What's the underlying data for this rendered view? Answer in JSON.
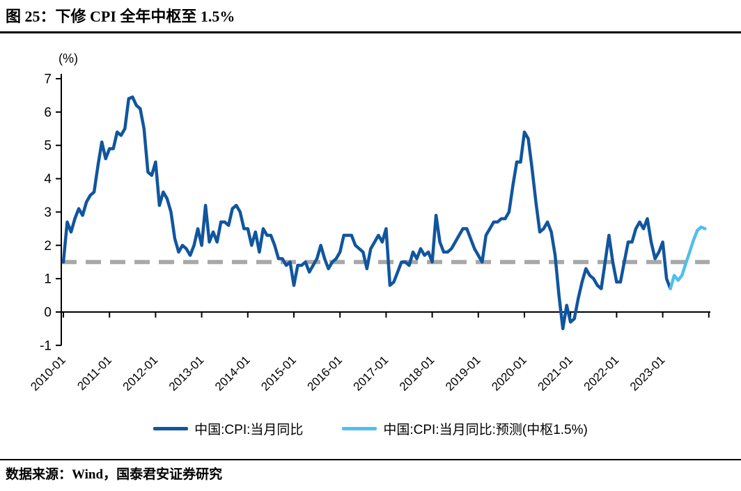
{
  "figure": {
    "title": "图 25：下修 CPI 全年中枢至 1.5%",
    "source": "数据来源：Wind，国泰君安证券研究"
  },
  "chart_data": {
    "type": "line",
    "title": "下修 CPI 全年中枢至 1.5%",
    "unit_label": "(%)",
    "ylabel": "(%)",
    "ylim": [
      -1,
      7
    ],
    "y_ticks": [
      7,
      6,
      5,
      4,
      3,
      2,
      1,
      0,
      -1
    ],
    "x_tick_labels": [
      "2010-01",
      "2011-01",
      "2012-01",
      "2013-01",
      "2014-01",
      "2015-01",
      "2016-01",
      "2017-01",
      "2018-01",
      "2019-01",
      "2020-01",
      "2021-01",
      "2022-01",
      "2023-01"
    ],
    "grid": "off",
    "legend_position": "bottom",
    "reference_line": {
      "value": 1.5,
      "style": "dashed",
      "color": "#A8A8A8"
    },
    "series": [
      {
        "name": "中国:CPI:当月同比",
        "color": "#11559E",
        "start": "2010-01",
        "frequency": "monthly",
        "values": [
          1.5,
          2.7,
          2.4,
          2.8,
          3.1,
          2.9,
          3.3,
          3.5,
          3.6,
          4.4,
          5.1,
          4.6,
          4.9,
          4.9,
          5.4,
          5.3,
          5.5,
          6.4,
          6.45,
          6.2,
          6.1,
          5.5,
          4.2,
          4.1,
          4.5,
          3.2,
          3.6,
          3.4,
          3.0,
          2.2,
          1.8,
          2.0,
          1.9,
          1.7,
          2.0,
          2.5,
          2.0,
          3.2,
          2.1,
          2.4,
          2.1,
          2.7,
          2.7,
          2.6,
          3.1,
          3.2,
          3.0,
          2.5,
          2.5,
          2.0,
          2.4,
          1.8,
          2.5,
          2.3,
          2.3,
          2.0,
          1.6,
          1.6,
          1.4,
          1.5,
          0.8,
          1.4,
          1.4,
          1.5,
          1.2,
          1.4,
          1.6,
          2.0,
          1.6,
          1.3,
          1.5,
          1.6,
          1.8,
          2.3,
          2.3,
          2.3,
          2.0,
          1.9,
          1.8,
          1.3,
          1.9,
          2.1,
          2.3,
          2.1,
          2.5,
          0.8,
          0.9,
          1.2,
          1.5,
          1.5,
          1.4,
          1.8,
          1.6,
          1.9,
          1.7,
          1.8,
          1.5,
          2.9,
          2.1,
          1.8,
          1.8,
          1.9,
          2.1,
          2.3,
          2.5,
          2.5,
          2.2,
          1.9,
          1.7,
          1.5,
          2.3,
          2.5,
          2.7,
          2.7,
          2.8,
          2.8,
          3.0,
          3.8,
          4.5,
          4.5,
          5.4,
          5.2,
          4.3,
          3.3,
          2.4,
          2.5,
          2.7,
          2.4,
          1.7,
          0.5,
          -0.5,
          0.2,
          -0.3,
          -0.2,
          0.4,
          0.9,
          1.3,
          1.1,
          1.0,
          0.8,
          0.7,
          1.5,
          2.3,
          1.5,
          0.9,
          0.9,
          1.5,
          2.1,
          2.1,
          2.5,
          2.7,
          2.5,
          2.8,
          2.1,
          1.6,
          1.8,
          2.1,
          1.0,
          0.7
        ]
      },
      {
        "name": "中国:CPI:当月同比:预测(中枢1.5%)",
        "color": "#52BEEE",
        "start": "2023-03",
        "frequency": "monthly",
        "values": [
          0.7,
          1.1,
          0.95,
          1.1,
          1.45,
          1.8,
          2.15,
          2.45,
          2.55,
          2.5
        ]
      }
    ]
  }
}
